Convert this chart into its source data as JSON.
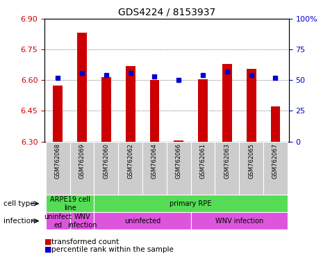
{
  "title": "GDS4224 / 8153937",
  "samples": [
    "GSM762068",
    "GSM762069",
    "GSM762060",
    "GSM762062",
    "GSM762064",
    "GSM762066",
    "GSM762061",
    "GSM762063",
    "GSM762065",
    "GSM762067"
  ],
  "red_values": [
    6.575,
    6.83,
    6.615,
    6.67,
    6.6,
    6.305,
    6.605,
    6.68,
    6.655,
    6.47
  ],
  "blue_values": [
    52,
    56,
    54,
    56,
    53,
    50,
    54,
    57,
    54,
    52
  ],
  "y_min": 6.3,
  "y_max": 6.9,
  "y_ticks_left": [
    6.3,
    6.45,
    6.6,
    6.75,
    6.9
  ],
  "y_ticks_right": [
    0,
    25,
    50,
    75,
    100
  ],
  "y_ticks_right_labels": [
    "0",
    "25",
    "50",
    "75",
    "100%"
  ],
  "bar_color": "#cc0000",
  "dot_color": "#0000cc",
  "left_axis_color": "#cc0000",
  "right_axis_color": "#0000cc",
  "grid_color": "#444444",
  "cell_groups": [
    {
      "label": "ARPE19 cell\nline",
      "start": 0,
      "end": 2,
      "color": "#55dd55"
    },
    {
      "label": "primary RPE",
      "start": 2,
      "end": 10,
      "color": "#55dd55"
    }
  ],
  "inf_groups": [
    {
      "label": "uninfect\ned",
      "start": 0,
      "end": 1,
      "color": "#dd55dd"
    },
    {
      "label": "WNV\ninfection",
      "start": 1,
      "end": 2,
      "color": "#dd55dd"
    },
    {
      "label": "uninfected",
      "start": 2,
      "end": 6,
      "color": "#dd55dd"
    },
    {
      "label": "WNV infection",
      "start": 6,
      "end": 10,
      "color": "#dd55dd"
    }
  ],
  "legend_items": [
    {
      "color": "#cc0000",
      "label": "transformed count"
    },
    {
      "color": "#0000cc",
      "label": "percentile rank within the sample"
    }
  ],
  "tick_bg_color": "#cccccc",
  "bar_width": 0.4
}
